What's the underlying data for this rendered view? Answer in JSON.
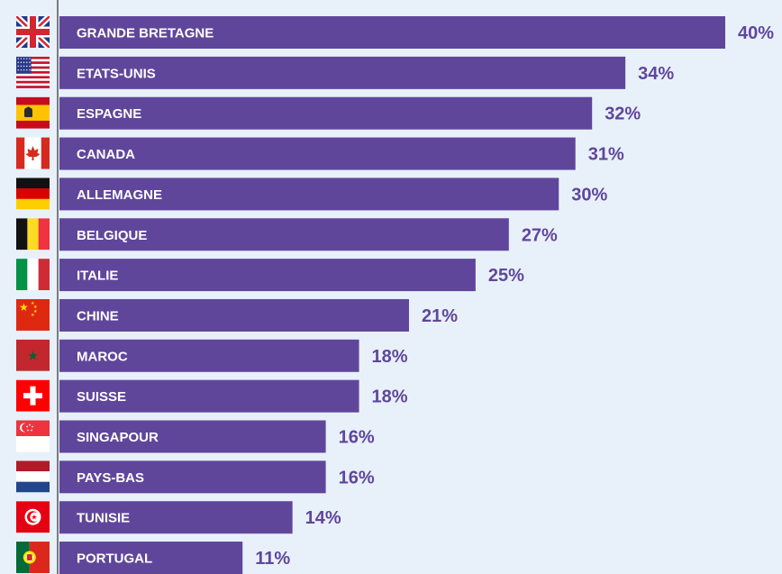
{
  "chart_data": {
    "type": "bar",
    "orientation": "horizontal",
    "categories": [
      "GRANDE BRETAGNE",
      "ETATS-UNIS",
      "ESPAGNE",
      "CANADA",
      "ALLEMAGNE",
      "BELGIQUE",
      "ITALIE",
      "CHINE",
      "MAROC",
      "SUISSE",
      "SINGAPOUR",
      "PAYS-BAS",
      "TUNISIE",
      "PORTUGAL"
    ],
    "values": [
      40,
      34,
      32,
      31,
      30,
      27,
      25,
      21,
      18,
      18,
      16,
      16,
      14,
      11
    ],
    "value_labels": [
      "40%",
      "34%",
      "32%",
      "31%",
      "30%",
      "27%",
      "25%",
      "21%",
      "18%",
      "18%",
      "16%",
      "16%",
      "14%",
      "11%"
    ],
    "flag_icons": [
      "uk-flag-icon",
      "usa-flag-icon",
      "spain-flag-icon",
      "canada-flag-icon",
      "germany-flag-icon",
      "belgium-flag-icon",
      "italy-flag-icon",
      "china-flag-icon",
      "morocco-flag-icon",
      "switzerland-flag-icon",
      "singapore-flag-icon",
      "netherlands-flag-icon",
      "tunisia-flag-icon",
      "portugal-flag-icon"
    ],
    "xlim": [
      0,
      40
    ],
    "grid": false,
    "legend": "none",
    "title": "",
    "xlabel": "",
    "ylabel": ""
  },
  "colors": {
    "bar": "#60469b",
    "value_text": "#60469b",
    "label_text": "#ffffff",
    "background": "#e8f1fa",
    "axis": "#555555"
  }
}
